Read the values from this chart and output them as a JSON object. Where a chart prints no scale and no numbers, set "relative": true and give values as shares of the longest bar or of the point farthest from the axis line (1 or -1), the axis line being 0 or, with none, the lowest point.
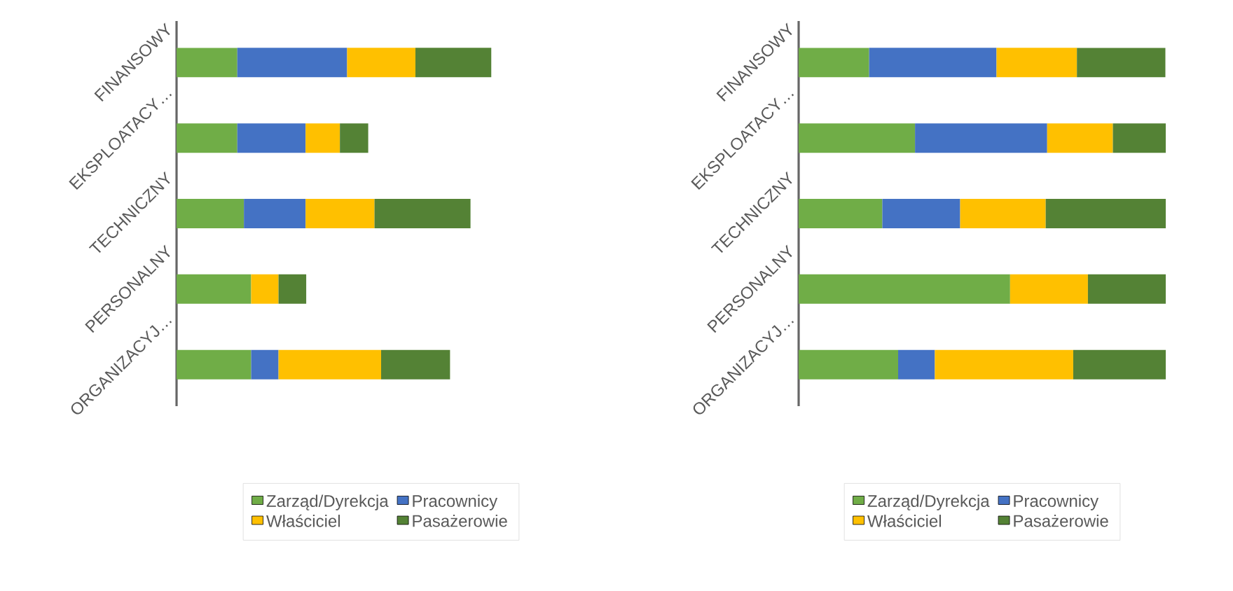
{
  "chart_data": [
    {
      "type": "bar",
      "orientation": "horizontal",
      "stacked": true,
      "relative": true,
      "legend": "bottom",
      "categories": [
        "FINANSOWY",
        "EKSPLOATACY…",
        "TECHNICZNY",
        "PERSONALNY",
        "ORGANIZACYJ…"
      ],
      "series": [
        {
          "name": "Zarząd/Dyrekcja",
          "color": "#70ad47",
          "values": [
            0.193,
            0.193,
            0.214,
            0.237,
            0.237
          ]
        },
        {
          "name": "Pracownicy",
          "color": "#4472c4",
          "values": [
            0.349,
            0.217,
            0.196,
            0,
            0.087
          ]
        },
        {
          "name": "Właściciel",
          "color": "#ffc000",
          "values": [
            0.217,
            0.109,
            0.219,
            0.087,
            0.326
          ]
        },
        {
          "name": "Pasażerowie",
          "color": "#548235",
          "values": [
            0.241,
            0.09,
            0.305,
            0.088,
            0.219
          ]
        }
      ]
    },
    {
      "type": "bar",
      "orientation": "horizontal",
      "stacked": true,
      "relative": true,
      "legend": "bottom",
      "categories": [
        "FINANSOWY",
        "EKSPLOATACY…",
        "TECHNICZNY",
        "PERSONALNY",
        "ORGANIZACYJ…"
      ],
      "series": [
        {
          "name": "Zarząd/Dyrekcja",
          "color": "#70ad47",
          "values": [
            0.192,
            0.317,
            0.228,
            0.576,
            0.271
          ]
        },
        {
          "name": "Pracownicy",
          "color": "#4472c4",
          "values": [
            0.347,
            0.36,
            0.212,
            0,
            0.1
          ]
        },
        {
          "name": "Właściciel",
          "color": "#ffc000",
          "values": [
            0.219,
            0.179,
            0.233,
            0.212,
            0.377
          ]
        },
        {
          "name": "Pasażerowie",
          "color": "#548235",
          "values": [
            0.241,
            0.144,
            0.327,
            0.212,
            0.252
          ]
        }
      ]
    }
  ]
}
